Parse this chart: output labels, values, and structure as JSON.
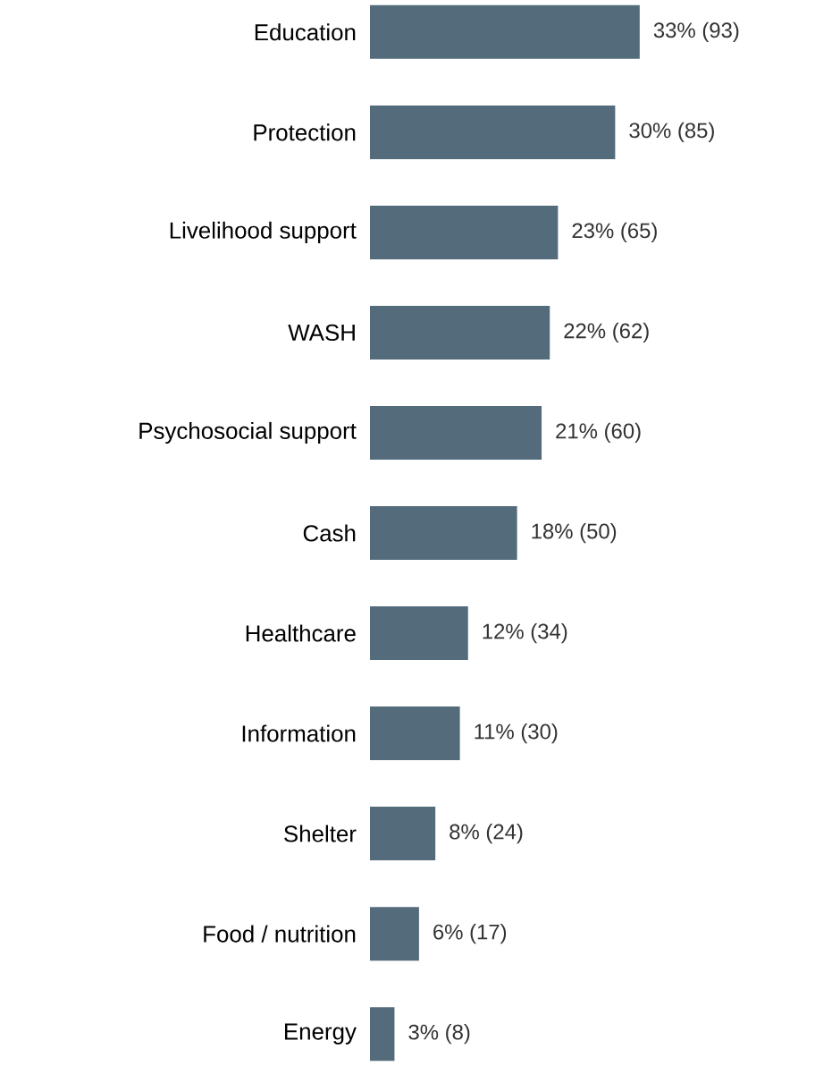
{
  "chart_data": {
    "type": "bar",
    "orientation": "horizontal",
    "color": "#546b7c",
    "categories": [
      "Education",
      "Protection",
      "Livelihood support",
      "WASH",
      "Psychosocial support",
      "Cash",
      "Healthcare",
      "Information",
      "Shelter",
      "Food / nutrition",
      "Energy"
    ],
    "values": [
      33,
      30,
      23,
      22,
      21,
      18,
      12,
      11,
      8,
      6,
      3
    ],
    "value_labels": [
      "33% (93)",
      "30% (85)",
      "23% (65)",
      "22% (62)",
      "21% (60)",
      "18% (50)",
      "12% (34)",
      "11% (30)",
      "8% (24)",
      "6% (17)",
      "3% (8)"
    ]
  }
}
